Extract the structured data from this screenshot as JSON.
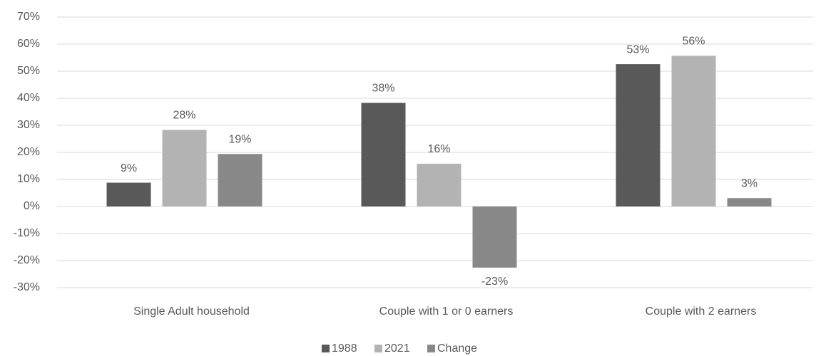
{
  "chart_data": {
    "type": "bar",
    "categories": [
      "Single Adult household",
      "Couple with 1 or 0 earners",
      "Couple with 2 earners"
    ],
    "series": [
      {
        "name": "1988",
        "color": "#595959",
        "values": [
          8.8,
          38.3,
          52.6
        ],
        "value_labels": [
          "9%",
          "38%",
          "53%"
        ]
      },
      {
        "name": "2021",
        "color": "#b3b3b3",
        "values": [
          28.3,
          15.8,
          55.7
        ],
        "value_labels": [
          "28%",
          "16%",
          "56%"
        ]
      },
      {
        "name": "Change",
        "color": "#888888",
        "values": [
          19.4,
          -22.6,
          3.1
        ],
        "value_labels": [
          "19%",
          "-23%",
          "3%"
        ]
      }
    ],
    "ylim": [
      -30,
      70
    ],
    "yticks": [
      {
        "value": -30,
        "label": "-30%"
      },
      {
        "value": -20,
        "label": "-20%"
      },
      {
        "value": -10,
        "label": "-10%"
      },
      {
        "value": 0,
        "label": "0%"
      },
      {
        "value": 10,
        "label": "10%"
      },
      {
        "value": 20,
        "label": "20%"
      },
      {
        "value": 30,
        "label": "30%"
      },
      {
        "value": 40,
        "label": "40%"
      },
      {
        "value": 50,
        "label": "50%"
      },
      {
        "value": 60,
        "label": "60%"
      },
      {
        "value": 70,
        "label": "70%"
      }
    ],
    "grid": true,
    "legend": "bottom"
  }
}
